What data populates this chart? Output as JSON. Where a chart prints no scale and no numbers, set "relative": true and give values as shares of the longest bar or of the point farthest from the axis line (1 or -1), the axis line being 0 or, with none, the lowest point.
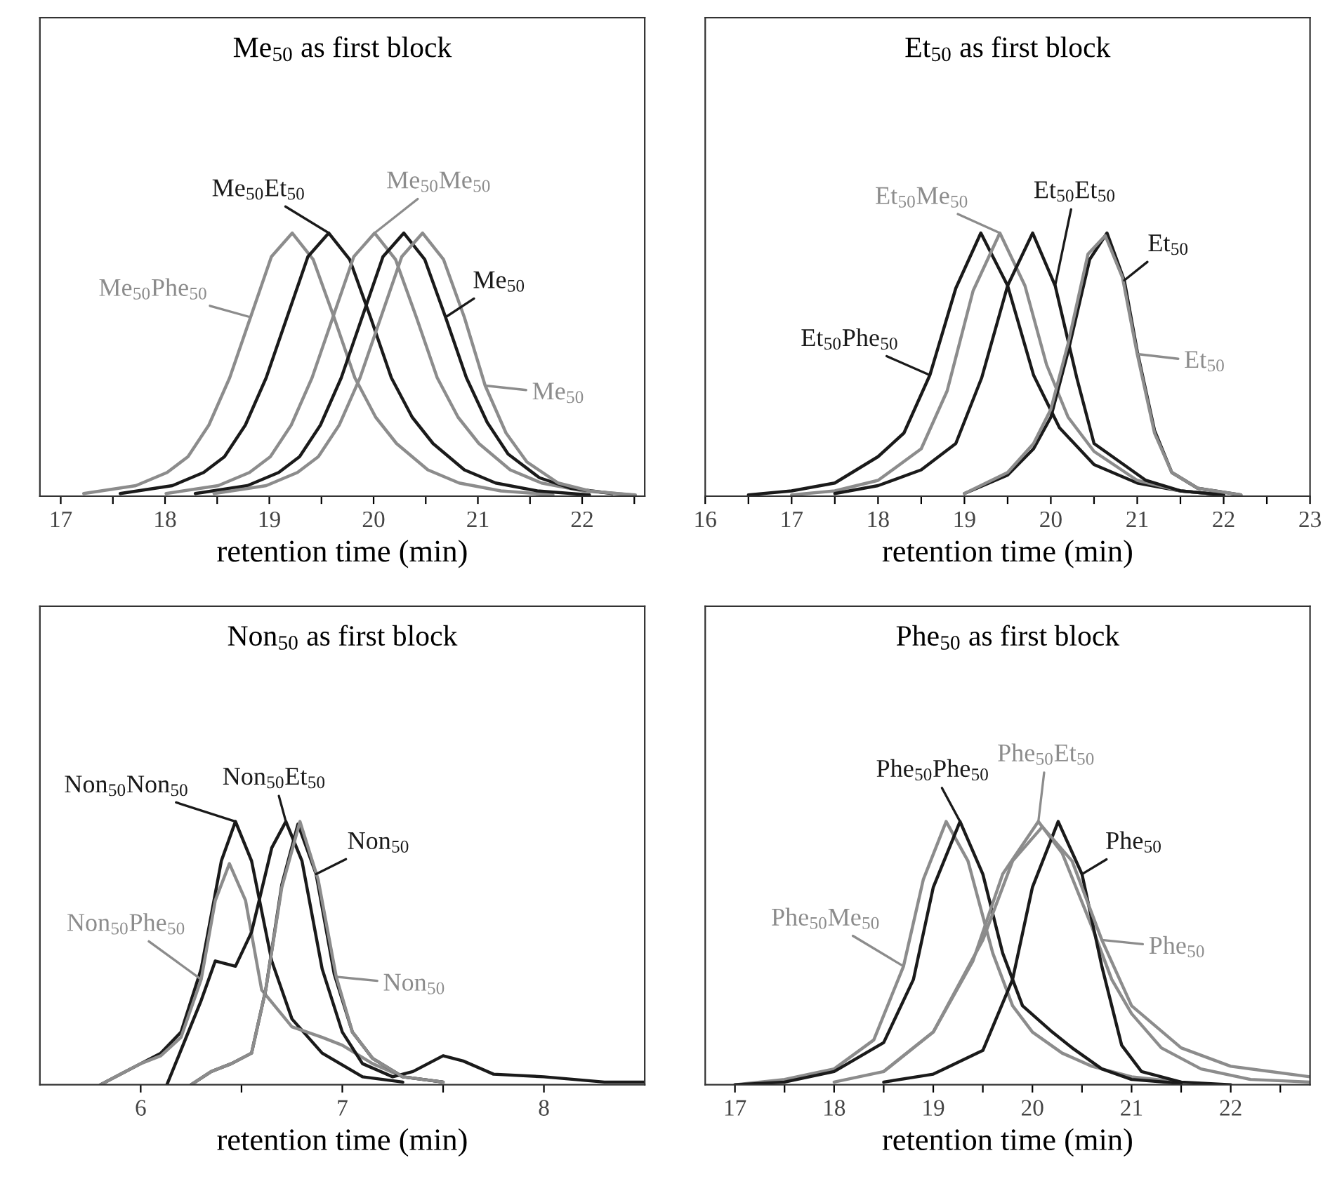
{
  "chart_data": [
    {
      "type": "line",
      "title": "Me$_{50}$ as first block",
      "xlabel": "retention time (min)",
      "relative": true,
      "tick_labels": "x",
      "legend": false,
      "grid": false,
      "xlim": [
        16.8,
        22.6
      ],
      "xticks": [
        17,
        {
          "value": 17.5,
          "label": null
        },
        18,
        {
          "value": 18.5,
          "label": null
        },
        19,
        {
          "value": 19.5,
          "label": null
        },
        20,
        {
          "value": 20.5,
          "label": null
        },
        21,
        {
          "value": 21.5,
          "label": null
        },
        22,
        {
          "value": 22.5,
          "label": null
        }
      ],
      "series": [
        {
          "name": "Me$_{50}$Phe$_{50}$",
          "color": "#8c8c8c",
          "x": [
            17.22,
            17.72,
            18.02,
            18.22,
            18.42,
            18.62,
            18.82,
            19.02,
            19.22,
            19.42,
            19.62,
            19.82,
            20.02,
            20.22,
            20.52,
            20.82,
            21.22,
            21.72
          ],
          "values": [
            0.01,
            0.04,
            0.09,
            0.15,
            0.27,
            0.45,
            0.68,
            0.91,
            1,
            0.9,
            0.68,
            0.45,
            0.3,
            0.2,
            0.1,
            0.05,
            0.02,
            0.005
          ]
        },
        {
          "name": "Me$_{50}$Et$_{50}$",
          "color": "#1a1a1a",
          "x": [
            17.57,
            18.07,
            18.37,
            18.57,
            18.77,
            18.97,
            19.17,
            19.37,
            19.57,
            19.77,
            19.97,
            20.17,
            20.37,
            20.57,
            20.87,
            21.17,
            21.57,
            22.07
          ],
          "values": [
            0.01,
            0.04,
            0.09,
            0.15,
            0.27,
            0.45,
            0.68,
            0.91,
            1,
            0.9,
            0.68,
            0.45,
            0.3,
            0.2,
            0.1,
            0.05,
            0.02,
            0.005
          ]
        },
        {
          "name": "Me$_{50}$Me$_{50}$",
          "color": "#8c8c8c",
          "x": [
            18.01,
            18.51,
            18.81,
            19.01,
            19.21,
            19.41,
            19.61,
            19.81,
            20.01,
            20.21,
            20.41,
            20.61,
            20.81,
            21.01,
            21.31,
            21.61,
            22.01,
            22.51
          ],
          "values": [
            0.01,
            0.04,
            0.09,
            0.15,
            0.27,
            0.45,
            0.68,
            0.91,
            1,
            0.9,
            0.68,
            0.45,
            0.3,
            0.2,
            0.1,
            0.05,
            0.02,
            0.005
          ]
        },
        {
          "name": "Me$_{50}$",
          "color": "#1a1a1a",
          "x": [
            18.29,
            18.79,
            19.09,
            19.29,
            19.49,
            19.69,
            19.89,
            20.09,
            20.29,
            20.49,
            20.69,
            20.89,
            21.09,
            21.29,
            21.59,
            21.89,
            22.29
          ],
          "values": [
            0.01,
            0.04,
            0.09,
            0.15,
            0.27,
            0.45,
            0.68,
            0.91,
            1,
            0.9,
            0.68,
            0.45,
            0.28,
            0.16,
            0.07,
            0.03,
            0.01
          ]
        },
        {
          "color": "#8c8c8c",
          "x": [
            18.47,
            18.97,
            19.27,
            19.47,
            19.67,
            19.87,
            20.07,
            20.27,
            20.47,
            20.67,
            20.87,
            21.07,
            21.27,
            21.47,
            21.77,
            22.07,
            22.47
          ],
          "values": [
            0.01,
            0.04,
            0.09,
            0.15,
            0.27,
            0.45,
            0.68,
            0.91,
            1,
            0.9,
            0.68,
            0.42,
            0.24,
            0.13,
            0.05,
            0.02,
            0.005
          ]
        }
      ],
      "annotations": [
        {
          "text": "Me$_{50}$",
          "x": 21.07,
          "y": 0.42
        }
      ]
    },
    {
      "type": "line",
      "title": "Et$_{50}$ as first block",
      "xlabel": "retention time (min)",
      "relative": true,
      "tick_labels": "x",
      "legend": false,
      "grid": false,
      "xlim": [
        16,
        23
      ],
      "xticks": [
        16,
        {
          "value": 16.5,
          "label": null
        },
        17,
        {
          "value": 17.5,
          "label": null
        },
        18,
        {
          "value": 18.5,
          "label": null
        },
        19,
        {
          "value": 19.5,
          "label": null
        },
        20,
        {
          "value": 20.5,
          "label": null
        },
        21,
        {
          "value": 21.5,
          "label": null
        },
        22,
        {
          "value": 22.5,
          "label": null
        },
        23
      ],
      "series": [
        {
          "name": "Et$_{50}$Phe$_{50}$",
          "color": "#1a1a1a",
          "x": [
            16.5,
            17,
            17.5,
            18,
            18.3,
            18.6,
            18.9,
            19.19,
            19.5,
            19.8,
            20.1,
            20.5,
            21,
            21.5,
            22
          ],
          "values": [
            0.005,
            0.02,
            0.05,
            0.15,
            0.24,
            0.46,
            0.79,
            1,
            0.8,
            0.46,
            0.26,
            0.12,
            0.05,
            0.02,
            0.005
          ]
        },
        {
          "name": "Et$_{50}$Me$_{50}$",
          "color": "#8c8c8c",
          "x": [
            17,
            17.5,
            18,
            18.5,
            18.8,
            19.1,
            19.41,
            19.7,
            19.95,
            20.2,
            20.5,
            21,
            21.5,
            22
          ],
          "values": [
            0.005,
            0.02,
            0.06,
            0.18,
            0.4,
            0.78,
            1,
            0.8,
            0.5,
            0.3,
            0.17,
            0.06,
            0.02,
            0.005
          ]
        },
        {
          "name": "Et$_{50}$Et$_{50}$",
          "color": "#1a1a1a",
          "x": [
            17.5,
            18,
            18.5,
            18.9,
            19.2,
            19.5,
            19.79,
            20.05,
            20.3,
            20.5,
            20.8,
            21.1,
            21.5,
            22
          ],
          "values": [
            0.01,
            0.04,
            0.1,
            0.2,
            0.45,
            0.8,
            1,
            0.8,
            0.45,
            0.2,
            0.13,
            0.06,
            0.02,
            0.005
          ]
        },
        {
          "name": "Et$_{50}$",
          "color": "#1a1a1a",
          "x": [
            19,
            19.5,
            19.8,
            20,
            20.2,
            20.45,
            20.65,
            20.85,
            21,
            21.2,
            21.4,
            21.7,
            22.2
          ],
          "values": [
            0.01,
            0.08,
            0.18,
            0.3,
            0.55,
            0.9,
            1,
            0.82,
            0.55,
            0.25,
            0.09,
            0.03,
            0.005
          ]
        },
        {
          "color": "#8c8c8c",
          "x": [
            19,
            19.5,
            19.8,
            20,
            20.2,
            20.43,
            20.63,
            20.83,
            21,
            21.2,
            21.4,
            21.7,
            22.2
          ],
          "values": [
            0.01,
            0.09,
            0.2,
            0.33,
            0.58,
            0.92,
            0.99,
            0.83,
            0.54,
            0.24,
            0.09,
            0.03,
            0.005
          ]
        }
      ],
      "annotations": [
        {
          "text": "Et$_{50}$",
          "x": 21,
          "y": 0.54
        }
      ]
    },
    {
      "type": "line",
      "title": "Non$_{50}$ as first block",
      "xlabel": "retention time (min)",
      "relative": true,
      "tick_labels": "x",
      "legend": false,
      "grid": false,
      "xlim": [
        5.5,
        8.5
      ],
      "xticks": [
        6,
        {
          "value": 6.5,
          "label": null
        },
        7,
        {
          "value": 7.5,
          "label": null
        },
        8
      ],
      "series": [
        {
          "name": "Non$_{50}$Non$_{50}$",
          "color": "#1a1a1a",
          "x": [
            5.8,
            6,
            6.1,
            6.2,
            6.3,
            6.4,
            6.47,
            6.55,
            6.65,
            6.75,
            6.9,
            7.1,
            7.3
          ],
          "values": [
            0,
            0.08,
            0.12,
            0.2,
            0.44,
            0.85,
            1,
            0.85,
            0.47,
            0.25,
            0.12,
            0.03,
            0.01
          ]
        },
        {
          "name": "Non$_{50}$Phe$_{50}$",
          "color": "#8c8c8c",
          "x": [
            5.8,
            6,
            6.1,
            6.2,
            6.3,
            6.37,
            6.44,
            6.52,
            6.6,
            6.75,
            6.9,
            7,
            7.15,
            7.3,
            7.5
          ],
          "values": [
            0,
            0.08,
            0.11,
            0.18,
            0.4,
            0.7,
            0.84,
            0.7,
            0.36,
            0.22,
            0.18,
            0.15,
            0.08,
            0.03,
            0.01
          ]
        },
        {
          "name": "Non$_{50}$Et$_{50}$",
          "color": "#1a1a1a",
          "x": [
            6.13,
            6.3,
            6.37,
            6.47,
            6.55,
            6.65,
            6.72,
            6.8,
            6.9,
            7,
            7.1,
            7.25,
            7.35,
            7.5,
            7.6,
            7.75,
            8,
            8.3,
            8.5
          ],
          "values": [
            0,
            0.32,
            0.47,
            0.45,
            0.58,
            0.9,
            1,
            0.85,
            0.44,
            0.2,
            0.08,
            0.03,
            0.05,
            0.11,
            0.09,
            0.04,
            0.03,
            0.01,
            0.01
          ]
        },
        {
          "name": "Non$_{50}$",
          "color": "#1a1a1a",
          "x": [
            6.25,
            6.35,
            6.45,
            6.55,
            6.62,
            6.7,
            6.78,
            6.87,
            6.96,
            7.05,
            7.15,
            7.3,
            7.5
          ],
          "values": [
            0,
            0.05,
            0.08,
            0.12,
            0.36,
            0.76,
            0.99,
            0.8,
            0.42,
            0.2,
            0.1,
            0.03,
            0.01
          ]
        },
        {
          "color": "#8c8c8c",
          "x": [
            6.25,
            6.35,
            6.45,
            6.55,
            6.62,
            6.7,
            6.79,
            6.88,
            6.97,
            7.05,
            7.15,
            7.3,
            7.5
          ],
          "values": [
            0,
            0.05,
            0.08,
            0.12,
            0.36,
            0.75,
            1,
            0.78,
            0.41,
            0.2,
            0.1,
            0.03,
            0.01
          ]
        }
      ],
      "annotations": [
        {
          "text": "Non$_{50}$",
          "x": 6.97,
          "y": 0.41
        }
      ]
    },
    {
      "type": "line",
      "title": "Phe$_{50}$ as first block",
      "xlabel": "retention time (min)",
      "relative": true,
      "tick_labels": "x",
      "legend": false,
      "grid": false,
      "xlim": [
        16.7,
        22.8
      ],
      "xticks": [
        17,
        {
          "value": 17.5,
          "label": null
        },
        18,
        {
          "value": 18.5,
          "label": null
        },
        19,
        {
          "value": 19.5,
          "label": null
        },
        20,
        {
          "value": 20.5,
          "label": null
        },
        21,
        {
          "value": 21.5,
          "label": null
        },
        22,
        {
          "value": 22.5,
          "label": null
        }
      ],
      "series": [
        {
          "name": "Phe$_{50}$Me$_{50}$",
          "color": "#8c8c8c",
          "x": [
            17,
            17.5,
            18,
            18.4,
            18.7,
            18.9,
            19.13,
            19.35,
            19.6,
            19.8,
            20,
            20.3,
            20.6,
            21,
            21.5
          ],
          "values": [
            0,
            0.02,
            0.06,
            0.17,
            0.45,
            0.78,
            1,
            0.85,
            0.5,
            0.3,
            0.2,
            0.12,
            0.07,
            0.03,
            0.01
          ]
        },
        {
          "name": "Phe$_{50}$Phe$_{50}$",
          "color": "#1a1a1a",
          "x": [
            17,
            17.5,
            18,
            18.5,
            18.8,
            19,
            19.27,
            19.5,
            19.7,
            19.9,
            20.2,
            20.4,
            20.7,
            21,
            21.5
          ],
          "values": [
            0,
            0.01,
            0.05,
            0.16,
            0.4,
            0.75,
            1,
            0.8,
            0.5,
            0.3,
            0.2,
            0.14,
            0.06,
            0.02,
            0.005
          ]
        },
        {
          "name": "Phe$_{50}$Et$_{50}$",
          "color": "#8c8c8c",
          "x": [
            18,
            18.5,
            19,
            19.4,
            19.7,
            20.06,
            20.3,
            20.6,
            20.8,
            21,
            21.3,
            21.7,
            22.2,
            22.8
          ],
          "values": [
            0.01,
            0.05,
            0.2,
            0.47,
            0.8,
            1,
            0.88,
            0.6,
            0.4,
            0.27,
            0.14,
            0.06,
            0.02,
            0.01
          ]
        },
        {
          "name": "Phe$_{50}$",
          "color": "#1a1a1a",
          "x": [
            18.5,
            19,
            19.5,
            19.8,
            20,
            20.26,
            20.5,
            20.7,
            20.9,
            21.1,
            21.5,
            22
          ],
          "values": [
            0.01,
            0.04,
            0.13,
            0.4,
            0.75,
            1,
            0.8,
            0.45,
            0.15,
            0.05,
            0.01,
            0
          ]
        },
        {
          "color": "#8c8c8c",
          "x": [
            18.5,
            19,
            19.5,
            19.8,
            20.1,
            20.4,
            20.7,
            21,
            21.5,
            22,
            22.8
          ],
          "values": [
            0.05,
            0.2,
            0.55,
            0.85,
            0.98,
            0.85,
            0.55,
            0.3,
            0.14,
            0.07,
            0.03
          ]
        }
      ],
      "annotations": [
        {
          "text": "Phe$_{50}$",
          "x": 20.7,
          "y": 0.55
        }
      ]
    }
  ]
}
